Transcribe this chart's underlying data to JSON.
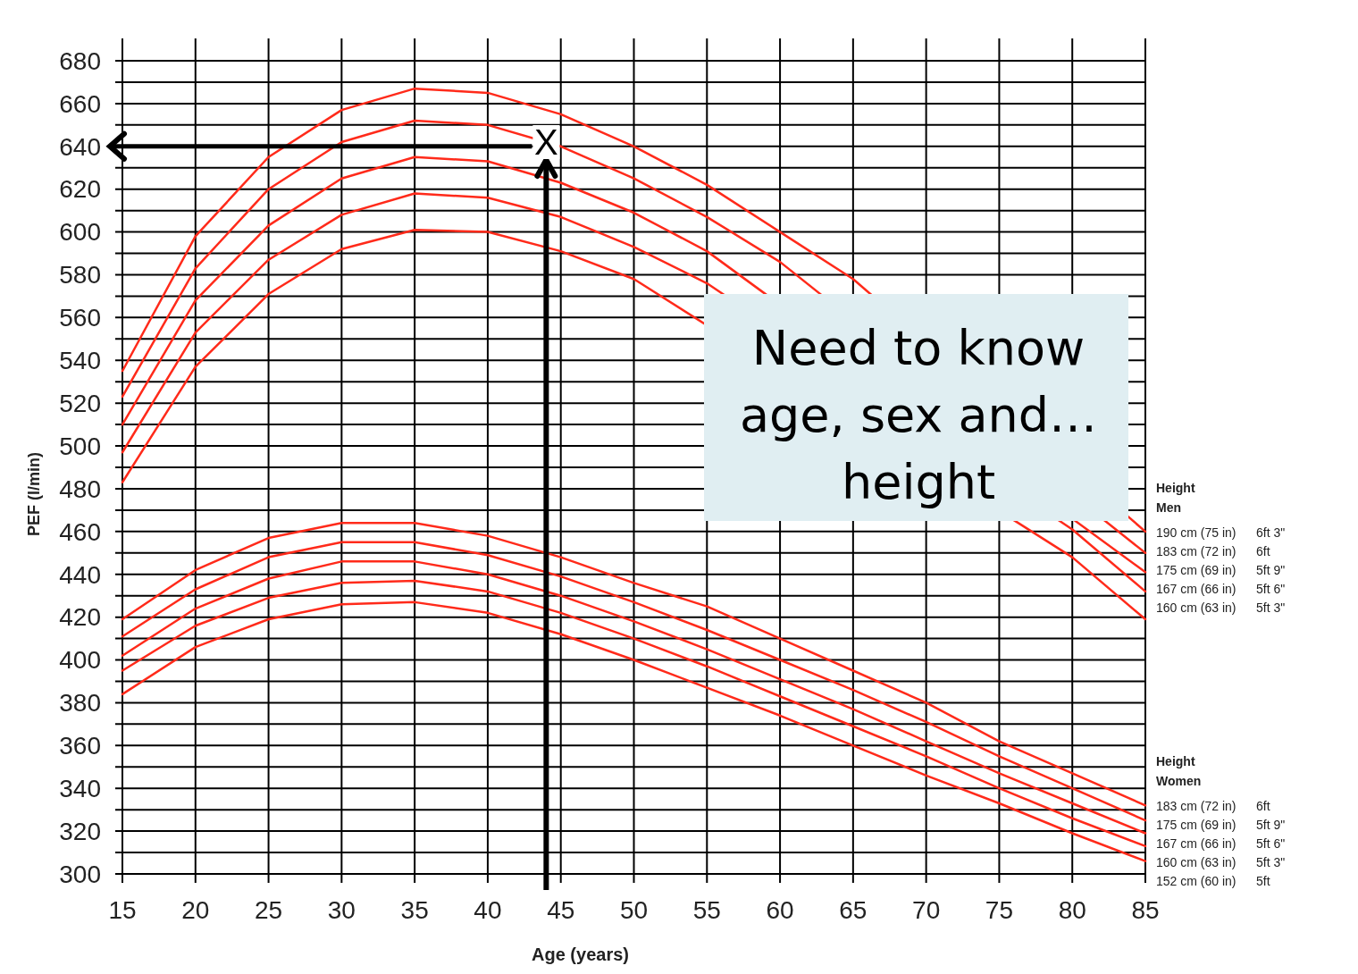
{
  "chart_data": {
    "type": "line",
    "xlabel": "Age (years)",
    "ylabel": "PEF (l/min)",
    "x": [
      15,
      20,
      25,
      30,
      35,
      40,
      45,
      50,
      55,
      60,
      65,
      70,
      75,
      80,
      85
    ],
    "xlim": [
      15,
      85
    ],
    "xticks": [
      15,
      20,
      25,
      30,
      35,
      40,
      45,
      50,
      55,
      60,
      65,
      70,
      75,
      80,
      85
    ],
    "ylim": [
      300,
      680
    ],
    "yticks": [
      300,
      {
        "value": 310,
        "label": null
      },
      320,
      {
        "value": 330,
        "label": null
      },
      340,
      {
        "value": 350,
        "label": null
      },
      360,
      {
        "value": 370,
        "label": null
      },
      380,
      {
        "value": 390,
        "label": null
      },
      400,
      {
        "value": 410,
        "label": null
      },
      420,
      {
        "value": 430,
        "label": null
      },
      440,
      {
        "value": 450,
        "label": null
      },
      460,
      {
        "value": 470,
        "label": null
      },
      480,
      {
        "value": 490,
        "label": null
      },
      500,
      {
        "value": 510,
        "label": null
      },
      520,
      {
        "value": 530,
        "label": null
      },
      540,
      {
        "value": 550,
        "label": null
      },
      560,
      {
        "value": 570,
        "label": null
      },
      580,
      {
        "value": 590,
        "label": null
      },
      600,
      {
        "value": 610,
        "label": null
      },
      620,
      {
        "value": 630,
        "label": null
      },
      640,
      {
        "value": 650,
        "label": null
      },
      660,
      {
        "value": 670,
        "label": null
      },
      680
    ],
    "grid": true,
    "marker": "none",
    "line_style": "solid",
    "series": [
      {
        "name": "190 cm (75 in)  6ft 3\"",
        "color": "#ff2a1a",
        "values": [
          535,
          598,
          635,
          657,
          667,
          665,
          655,
          640,
          622,
          600,
          578,
          null,
          null,
          null,
          460
        ]
      },
      {
        "name": "183 cm (72 in)  6ft",
        "color": "#ff2a1a",
        "values": [
          523,
          583,
          620,
          642,
          652,
          650,
          640,
          625,
          607,
          586,
          null,
          null,
          null,
          null,
          450
        ]
      },
      {
        "name": "175 cm (69 in)  5ft 9\"",
        "color": "#ff2a1a",
        "values": [
          510,
          568,
          603,
          625,
          635,
          633,
          623,
          609,
          591,
          null,
          null,
          null,
          null,
          null,
          441
        ]
      },
      {
        "name": "167 cm (66 in)  5ft 6\"",
        "color": "#ff2a1a",
        "values": [
          497,
          553,
          587,
          608,
          618,
          616,
          607,
          593,
          576,
          null,
          null,
          null,
          null,
          461,
          432
        ]
      },
      {
        "name": "160 cm (63 in)  5ft 3\"",
        "color": "#ff2a1a",
        "values": [
          483,
          537,
          571,
          592,
          601,
          600,
          591,
          578,
          null,
          null,
          null,
          null,
          null,
          448,
          419
        ]
      },
      {
        "name": "183 cm (72 in)  6ft",
        "color": "#ff2a1a",
        "values": [
          419,
          442,
          457,
          464,
          464,
          458,
          448,
          436,
          425,
          410,
          395,
          380,
          362,
          347,
          332
        ]
      },
      {
        "name": "175 cm (69 in)  5ft 9\"",
        "color": "#ff2a1a",
        "values": [
          411,
          433,
          448,
          455,
          455,
          449,
          439,
          427,
          414,
          400,
          386,
          371,
          355,
          340,
          325
        ]
      },
      {
        "name": "167 cm (66 in)  5ft 6\"",
        "color": "#ff2a1a",
        "values": [
          402,
          424,
          438,
          446,
          446,
          440,
          430,
          418,
          405,
          391,
          377,
          362,
          347,
          333,
          319
        ]
      },
      {
        "name": "160 cm (63 in)  5ft 3\"",
        "color": "#ff2a1a",
        "values": [
          395,
          416,
          429,
          436,
          437,
          432,
          422,
          410,
          397,
          383,
          369,
          355,
          340,
          326,
          313
        ]
      },
      {
        "name": "152 cm (60 in)  5ft",
        "color": "#ff2a1a",
        "values": [
          384,
          406,
          419,
          426,
          427,
          422,
          412,
          400,
          387,
          374,
          360,
          346,
          333,
          319,
          306
        ]
      }
    ],
    "ref_lines": [
      {
        "axis": "x",
        "value": 44,
        "color": "#000000"
      },
      {
        "axis": "y",
        "value": 640,
        "color": "#000000"
      }
    ],
    "annotations": [
      "Height",
      "Men",
      "Height",
      "Women",
      "Need to know age, sex and… height",
      {
        "text": "X",
        "x": 44,
        "y": 642
      }
    ]
  }
}
